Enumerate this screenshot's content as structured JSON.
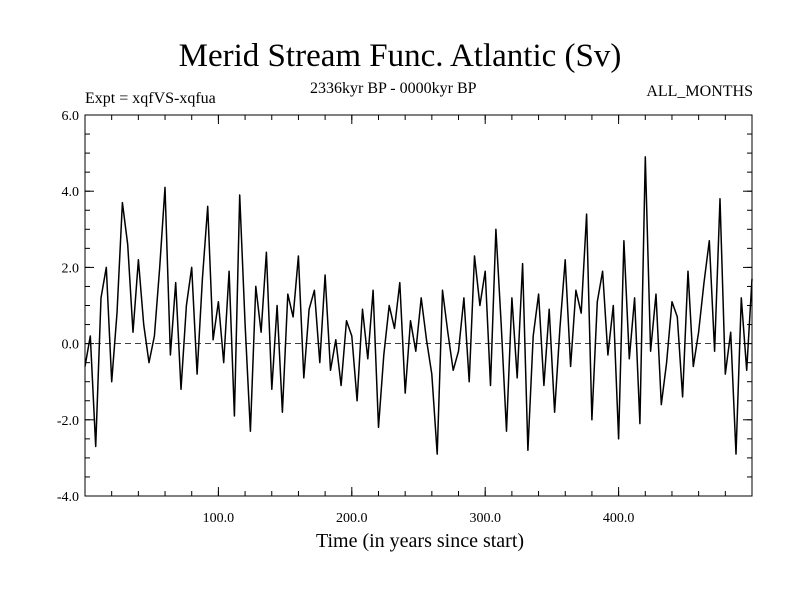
{
  "chart_data": {
    "type": "line",
    "title": "Merid Stream Func. Atlantic (Sv)",
    "subtitle_left": "Expt = xqfVS-xqfua",
    "subtitle_center": "2336kyr BP - 0000kyr BP",
    "subtitle_right": "ALL_MONTHS",
    "xlabel": "Time (in years since start)",
    "ylabel": "",
    "xlim": [
      0,
      500
    ],
    "ylim": [
      -4.0,
      6.0
    ],
    "xticks": [
      100,
      200,
      300,
      400
    ],
    "xtick_labels": [
      "100.0",
      "200.0",
      "300.0",
      "400.0"
    ],
    "yticks": [
      -4,
      -2,
      0,
      2,
      4,
      6
    ],
    "ytick_labels": [
      "-4.0",
      "-2.0",
      "0.0",
      "2.0",
      "4.0",
      "6.0"
    ],
    "reference_line": 0.0,
    "series": [
      {
        "name": "xqfVS-xqfua",
        "x": [
          0,
          4,
          8,
          12,
          16,
          20,
          24,
          28,
          32,
          36,
          40,
          44,
          48,
          52,
          56,
          60,
          64,
          68,
          72,
          76,
          80,
          84,
          88,
          92,
          96,
          100,
          104,
          108,
          112,
          116,
          120,
          124,
          128,
          132,
          136,
          140,
          144,
          148,
          152,
          156,
          160,
          164,
          168,
          172,
          176,
          180,
          184,
          188,
          192,
          196,
          200,
          204,
          208,
          212,
          216,
          220,
          224,
          228,
          232,
          236,
          240,
          244,
          248,
          252,
          256,
          260,
          264,
          268,
          272,
          276,
          280,
          284,
          288,
          292,
          296,
          300,
          304,
          308,
          312,
          316,
          320,
          324,
          328,
          332,
          336,
          340,
          344,
          348,
          352,
          356,
          360,
          364,
          368,
          372,
          376,
          380,
          384,
          388,
          392,
          396,
          400,
          404,
          408,
          412,
          416,
          420,
          424,
          428,
          432,
          436,
          440,
          444,
          448,
          452,
          456,
          460,
          464,
          468,
          472,
          476,
          480,
          484,
          488,
          492,
          496,
          500
        ],
        "values": [
          -0.6,
          0.2,
          -2.7,
          1.2,
          2.0,
          -1.0,
          0.8,
          3.7,
          2.6,
          0.3,
          2.2,
          0.5,
          -0.5,
          0.2,
          2.0,
          4.1,
          -0.3,
          1.6,
          -1.2,
          1.0,
          2.0,
          -0.8,
          1.7,
          3.6,
          0.1,
          1.1,
          -0.5,
          1.9,
          -1.9,
          3.9,
          0.5,
          -2.3,
          1.5,
          0.3,
          2.4,
          -1.2,
          1.0,
          -1.8,
          1.3,
          0.7,
          2.3,
          -0.9,
          0.9,
          1.4,
          -0.5,
          1.8,
          -0.7,
          0.1,
          -1.1,
          0.6,
          0.2,
          -1.5,
          0.9,
          -0.4,
          1.4,
          -2.2,
          -0.3,
          1.0,
          0.4,
          1.6,
          -1.3,
          0.6,
          -0.2,
          1.2,
          0.1,
          -0.8,
          -2.9,
          1.4,
          0.3,
          -0.7,
          -0.2,
          1.2,
          -1.0,
          2.3,
          1.0,
          1.9,
          -1.1,
          3.0,
          0.5,
          -2.3,
          1.2,
          -0.9,
          2.1,
          -2.8,
          0.2,
          1.3,
          -1.1,
          0.9,
          -1.8,
          0.4,
          2.2,
          -0.6,
          1.4,
          0.8,
          3.4,
          -2.0,
          1.1,
          1.9,
          -0.3,
          1.0,
          -2.5,
          2.7,
          -0.4,
          1.2,
          -2.1,
          4.9,
          -0.2,
          1.3,
          -1.6,
          -0.5,
          1.1,
          0.7,
          -1.4,
          1.9,
          -0.6,
          0.3,
          1.6,
          2.7,
          -0.2,
          3.8,
          -0.8,
          0.3,
          -2.9,
          1.2,
          -0.7,
          1.7
        ],
        "color": "#000000"
      }
    ]
  }
}
